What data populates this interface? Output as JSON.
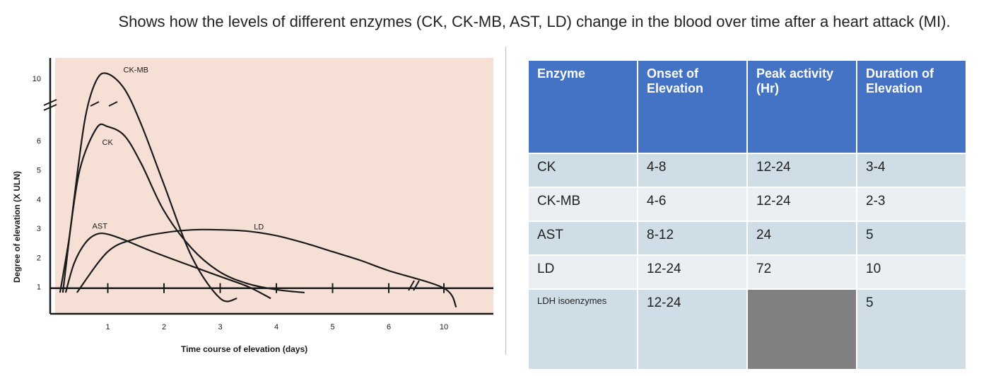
{
  "caption": "Shows how the levels of different enzymes (CK, CK-MB, AST, LD) change in the blood over time after a heart attack (MI).",
  "colors": {
    "panel": "#f6e0d6",
    "curve": "#1a1a1a",
    "table_header": "#4472c4",
    "row_a": "#cfdde6",
    "row_b": "#e9eff3",
    "blank_cell": "#808080"
  },
  "chart_data": {
    "type": "line",
    "title": "",
    "xlabel": "Time course of elevation (days)",
    "ylabel": "Degree of elevation (X ULN)",
    "x_ticks": [
      "1",
      "2",
      "3",
      "4",
      "5",
      "6",
      "10"
    ],
    "y_ticks": [
      "1",
      "2",
      "3",
      "4",
      "5",
      "6",
      "10"
    ],
    "x_axis_break": "between 6 and 10",
    "y_axis_break": "between 6 and 10",
    "grid": false,
    "series": [
      {
        "name": "CK-MB",
        "x": [
          0.2,
          0.4,
          0.6,
          0.8,
          1.0,
          1.3,
          1.6,
          2.0,
          2.5,
          3.0,
          3.3
        ],
        "y": [
          0.8,
          4.0,
          7.5,
          9.9,
          10.3,
          9.3,
          7.0,
          4.5,
          2.0,
          0.6,
          0.6
        ]
      },
      {
        "name": "CK",
        "x": [
          0.15,
          0.3,
          0.5,
          0.8,
          1.0,
          1.3,
          1.6,
          2.0,
          2.5,
          3.0,
          3.5,
          4.0,
          4.5
        ],
        "y": [
          0.8,
          2.5,
          5.0,
          6.8,
          6.9,
          6.3,
          5.2,
          3.6,
          2.3,
          1.5,
          1.1,
          0.9,
          0.8
        ]
      },
      {
        "name": "AST",
        "x": [
          0.25,
          0.4,
          0.6,
          0.8,
          1.0,
          1.3,
          1.8,
          2.5,
          3.0,
          3.5,
          3.9
        ],
        "y": [
          0.8,
          1.8,
          2.5,
          2.8,
          2.8,
          2.6,
          2.2,
          1.7,
          1.35,
          1.0,
          0.6
        ]
      },
      {
        "name": "LD",
        "x": [
          0.45,
          1.0,
          1.5,
          2.0,
          2.5,
          3.0,
          3.5,
          4.0,
          4.5,
          5.0,
          5.5,
          6.0,
          10.0,
          10.9
        ],
        "y": [
          0.8,
          2.2,
          2.65,
          2.85,
          2.95,
          2.95,
          2.9,
          2.75,
          2.5,
          2.2,
          1.9,
          1.55,
          0.95,
          0.3
        ]
      }
    ]
  },
  "table": {
    "headers": [
      "Enzyme",
      "Onset of Elevation",
      "Peak activity (Hr)",
      "Duration of Elevation"
    ],
    "rows": [
      [
        "CK",
        "4-8",
        "12-24",
        "3-4"
      ],
      [
        "CK-MB",
        "4-6",
        "12-24",
        "2-3"
      ],
      [
        "AST",
        "8-12",
        "24",
        "5"
      ],
      [
        "LD",
        "12-24",
        "72",
        "10"
      ],
      [
        "LDH isoenzymes",
        "12-24",
        "",
        "5"
      ]
    ]
  }
}
